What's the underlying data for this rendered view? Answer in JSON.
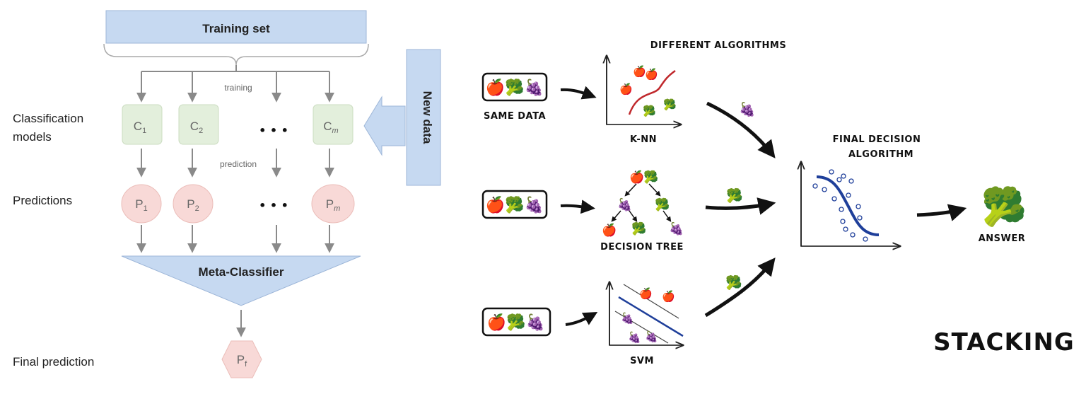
{
  "left": {
    "training_set": "Training set",
    "training_label": "training",
    "prediction_label": "prediction",
    "new_data": "New data",
    "row_labels": {
      "classification_line1": "Classification",
      "classification_line2": "models",
      "predictions": "Predictions",
      "final_prediction": "Final prediction"
    },
    "classifiers": [
      {
        "base": "C",
        "sub": "1"
      },
      {
        "base": "C",
        "sub": "2"
      },
      {
        "base": "C",
        "sub": "m"
      }
    ],
    "predictions": [
      {
        "base": "P",
        "sub": "1"
      },
      {
        "base": "P",
        "sub": "2"
      },
      {
        "base": "P",
        "sub": "m"
      }
    ],
    "ellipsis": "• • •",
    "meta_classifier": "Meta-Classifier",
    "final": {
      "base": "P",
      "sub": "f"
    }
  },
  "right": {
    "different_algorithms": "DIFFERENT ALGORITHMS",
    "same_data": "SAME DATA",
    "knn": "K-NN",
    "decision_tree": "DECISION TREE",
    "svm": "SVM",
    "final_decision_line1": "FINAL DECISION",
    "final_decision_line2": "ALGORITHM",
    "answer": "ANSWER",
    "stacking": "STACKING",
    "emoji": {
      "apple": "🍎",
      "broccoli": "🥦",
      "grapes": "🍇"
    }
  },
  "colors": {
    "training_box": "#c6d9f1",
    "node_green": "#e3efdc",
    "node_pink": "#f8d9d7",
    "meta": "#c6d9f1",
    "arrow_gray": "#8a8a8a",
    "red_curve": "#c0282c",
    "blue_curve": "#1f3f9a"
  }
}
